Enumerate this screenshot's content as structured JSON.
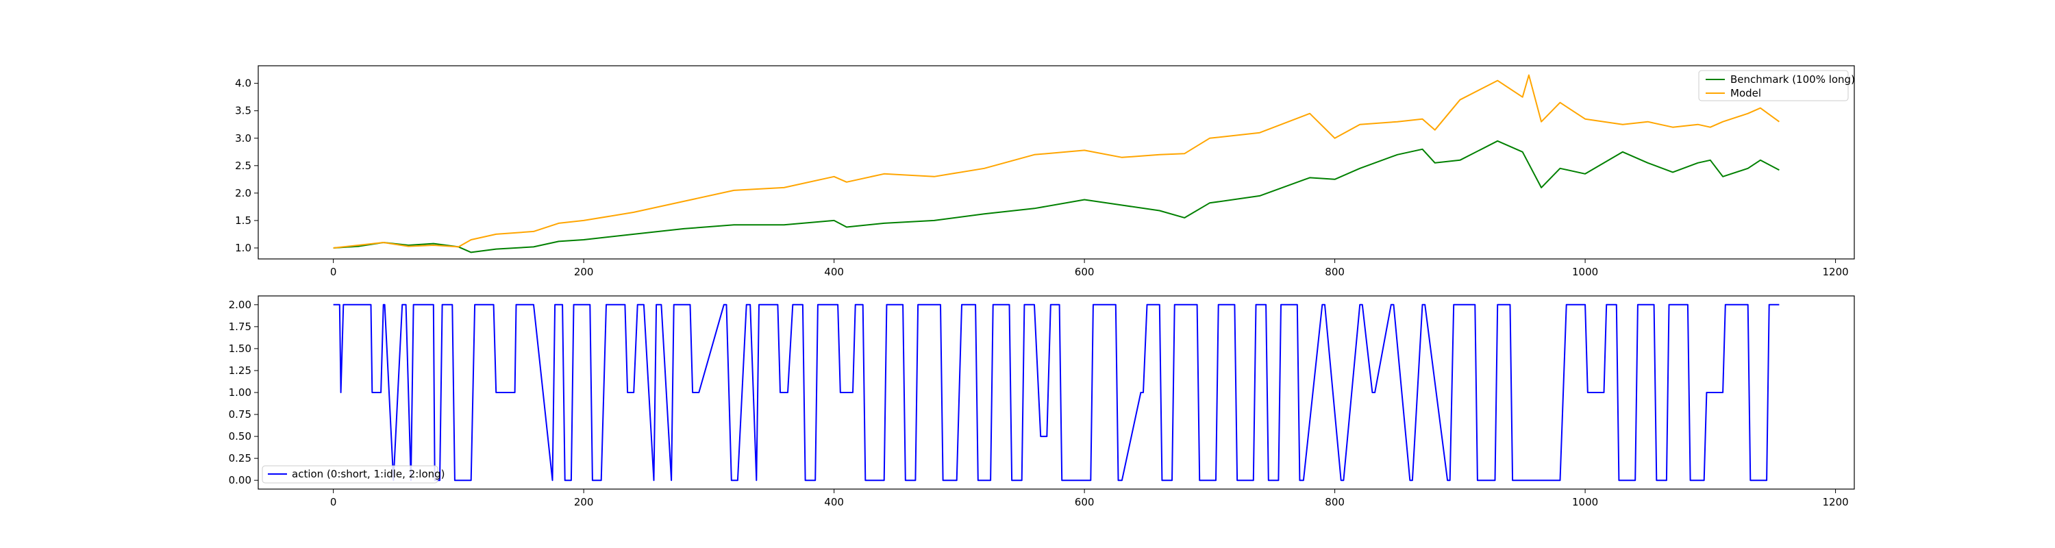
{
  "chart_data": [
    {
      "type": "line",
      "title": "",
      "xlabel": "",
      "ylabel": "",
      "xlim": [
        -60,
        1215
      ],
      "ylim": [
        0.8,
        4.32
      ],
      "xticks": [
        0,
        200,
        400,
        600,
        800,
        1000,
        1200
      ],
      "yticks": [
        1.0,
        1.5,
        2.0,
        2.5,
        3.0,
        3.5,
        4.0
      ],
      "ytick_labels": [
        "1.0",
        "1.5",
        "2.0",
        "2.5",
        "3.0",
        "3.5",
        "4.0"
      ],
      "grid": false,
      "legend_position": "upper right",
      "series": [
        {
          "name": "Benchmark (100% long)",
          "color": "#008000",
          "x": [
            0,
            20,
            40,
            60,
            80,
            100,
            110,
            130,
            160,
            180,
            200,
            240,
            280,
            320,
            360,
            400,
            410,
            440,
            480,
            520,
            560,
            600,
            630,
            660,
            680,
            700,
            740,
            780,
            800,
            820,
            850,
            870,
            880,
            900,
            930,
            950,
            965,
            980,
            1000,
            1030,
            1050,
            1070,
            1090,
            1100,
            1110,
            1130,
            1140,
            1155
          ],
          "values": [
            1.0,
            1.03,
            1.1,
            1.05,
            1.08,
            1.02,
            0.92,
            0.98,
            1.02,
            1.12,
            1.15,
            1.25,
            1.35,
            1.42,
            1.42,
            1.5,
            1.38,
            1.45,
            1.5,
            1.62,
            1.72,
            1.88,
            1.78,
            1.68,
            1.55,
            1.82,
            1.95,
            2.28,
            2.25,
            2.45,
            2.7,
            2.8,
            2.55,
            2.6,
            2.95,
            2.75,
            2.1,
            2.45,
            2.35,
            2.75,
            2.55,
            2.38,
            2.55,
            2.6,
            2.3,
            2.45,
            2.6,
            2.42
          ]
        },
        {
          "name": "Model",
          "color": "#ffa500",
          "x": [
            0,
            20,
            40,
            60,
            80,
            100,
            110,
            130,
            160,
            180,
            200,
            240,
            280,
            320,
            360,
            400,
            410,
            440,
            480,
            520,
            560,
            600,
            630,
            660,
            680,
            700,
            740,
            780,
            800,
            820,
            850,
            870,
            880,
            900,
            930,
            950,
            955,
            965,
            980,
            1000,
            1030,
            1050,
            1070,
            1090,
            1100,
            1110,
            1130,
            1140,
            1155
          ],
          "values": [
            1.0,
            1.05,
            1.1,
            1.03,
            1.05,
            1.02,
            1.15,
            1.25,
            1.3,
            1.45,
            1.5,
            1.65,
            1.85,
            2.05,
            2.1,
            2.3,
            2.2,
            2.35,
            2.3,
            2.45,
            2.7,
            2.78,
            2.65,
            2.7,
            2.72,
            3.0,
            3.1,
            3.45,
            3.0,
            3.25,
            3.3,
            3.35,
            3.15,
            3.7,
            4.05,
            3.75,
            4.15,
            3.3,
            3.65,
            3.35,
            3.25,
            3.3,
            3.2,
            3.25,
            3.2,
            3.3,
            3.45,
            3.55,
            3.3
          ]
        }
      ]
    },
    {
      "type": "line",
      "title": "",
      "xlabel": "",
      "ylabel": "",
      "xlim": [
        -60,
        1215
      ],
      "ylim": [
        -0.1,
        2.1
      ],
      "xticks": [
        0,
        200,
        400,
        600,
        800,
        1000,
        1200
      ],
      "yticks": [
        0.0,
        0.25,
        0.5,
        0.75,
        1.0,
        1.25,
        1.5,
        1.75,
        2.0
      ],
      "ytick_labels": [
        "0.00",
        "0.25",
        "0.50",
        "0.75",
        "1.00",
        "1.25",
        "1.50",
        "1.75",
        "2.00"
      ],
      "grid": false,
      "legend_position": "lower left",
      "series": [
        {
          "name": "action (0:short, 1:idle, 2:long)",
          "color": "#0000ff",
          "x": [
            0,
            5,
            6,
            8,
            30,
            31,
            38,
            40,
            41,
            48,
            55,
            58,
            62,
            64,
            80,
            81,
            85,
            87,
            95,
            97,
            110,
            113,
            128,
            130,
            145,
            146,
            160,
            175,
            177,
            183,
            185,
            190,
            192,
            205,
            207,
            214,
            218,
            233,
            235,
            240,
            243,
            248,
            256,
            258,
            262,
            270,
            272,
            285,
            287,
            292,
            312,
            314,
            318,
            323,
            330,
            333,
            338,
            340,
            355,
            357,
            363,
            367,
            375,
            377,
            385,
            387,
            403,
            405,
            415,
            417,
            423,
            425,
            440,
            442,
            455,
            457,
            465,
            467,
            485,
            487,
            498,
            502,
            513,
            515,
            525,
            527,
            540,
            542,
            550,
            552,
            560,
            565,
            570,
            573,
            580,
            582,
            605,
            607,
            625,
            627,
            630,
            645,
            647,
            650,
            660,
            662,
            670,
            672,
            690,
            692,
            705,
            707,
            720,
            722,
            735,
            737,
            745,
            747,
            755,
            757,
            770,
            772,
            775,
            790,
            792,
            805,
            807,
            820,
            822,
            830,
            832,
            845,
            847,
            860,
            862,
            870,
            872,
            890,
            892,
            895,
            912,
            914,
            928,
            930,
            940,
            942,
            980,
            985,
            1000,
            1002,
            1015,
            1017,
            1025,
            1027,
            1040,
            1042,
            1055,
            1057,
            1065,
            1067,
            1082,
            1084,
            1095,
            1097,
            1110,
            1112,
            1130,
            1132,
            1145,
            1147,
            1155
          ],
          "values": [
            2,
            2,
            1,
            2,
            2,
            1,
            1,
            2,
            2,
            0,
            2,
            2,
            0,
            2,
            2,
            0,
            0,
            2,
            2,
            0,
            0,
            2,
            2,
            1,
            1,
            2,
            2,
            0,
            2,
            2,
            0,
            0,
            2,
            2,
            0,
            0,
            2,
            2,
            1,
            1,
            2,
            2,
            0,
            2,
            2,
            0,
            2,
            2,
            1,
            1,
            2,
            2,
            0,
            0,
            2,
            2,
            0,
            2,
            2,
            1,
            1,
            2,
            2,
            0,
            0,
            2,
            2,
            1,
            1,
            2,
            2,
            0,
            0,
            2,
            2,
            0,
            0,
            2,
            2,
            0,
            0,
            2,
            2,
            0,
            0,
            2,
            2,
            0,
            0,
            2,
            2,
            0.5,
            0.5,
            2,
            2,
            0,
            0,
            2,
            2,
            0,
            0,
            1,
            1,
            2,
            2,
            0,
            0,
            2,
            2,
            0,
            0,
            2,
            2,
            0,
            0,
            2,
            2,
            0,
            0,
            2,
            2,
            0,
            0,
            2,
            2,
            0,
            0,
            2,
            2,
            1,
            1,
            2,
            2,
            0,
            0,
            2,
            2,
            0,
            0,
            2,
            2,
            0,
            0,
            2,
            2,
            0,
            0,
            2,
            2,
            1,
            1,
            2,
            2,
            0,
            0,
            2,
            2,
            0,
            0,
            2,
            2,
            0,
            0,
            1,
            1,
            2,
            2,
            0,
            0,
            2,
            2
          ]
        }
      ]
    }
  ]
}
